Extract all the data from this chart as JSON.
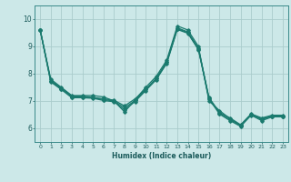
{
  "title": "",
  "xlabel": "Humidex (Indice chaleur)",
  "bg_color": "#cce8e8",
  "line_color": "#1a7a6e",
  "grid_color": "#aacccc",
  "xlim": [
    -0.5,
    23.5
  ],
  "ylim": [
    5.5,
    10.5
  ],
  "yticks": [
    6,
    7,
    8,
    9,
    10
  ],
  "xticks": [
    0,
    1,
    2,
    3,
    4,
    5,
    6,
    7,
    8,
    9,
    10,
    11,
    12,
    13,
    14,
    15,
    16,
    17,
    18,
    19,
    20,
    21,
    22,
    23
  ],
  "series": [
    {
      "x": [
        0,
        1,
        2,
        3,
        4,
        5,
        6,
        7,
        8,
        9,
        10,
        11,
        12,
        13,
        14,
        15,
        16,
        17,
        18,
        19,
        20,
        21,
        22,
        23
      ],
      "y": [
        9.6,
        7.8,
        7.5,
        7.2,
        7.2,
        7.2,
        7.15,
        7.0,
        6.6,
        7.05,
        7.5,
        7.9,
        8.5,
        9.75,
        9.6,
        9.0,
        7.0,
        6.65,
        6.35,
        6.1,
        6.5,
        6.35,
        6.45,
        6.45
      ]
    },
    {
      "x": [
        0,
        1,
        2,
        3,
        4,
        5,
        6,
        7,
        8,
        9,
        10,
        11,
        12,
        13,
        14,
        15,
        16,
        17,
        18,
        19,
        20,
        21,
        22,
        23
      ],
      "y": [
        9.6,
        7.75,
        7.48,
        7.18,
        7.18,
        7.13,
        7.08,
        7.03,
        6.82,
        7.08,
        7.43,
        7.83,
        8.43,
        9.68,
        9.53,
        8.93,
        7.13,
        6.58,
        6.38,
        6.13,
        6.53,
        6.38,
        6.48,
        6.48
      ]
    },
    {
      "x": [
        0,
        1,
        2,
        3,
        4,
        5,
        6,
        7,
        8,
        9,
        10,
        11,
        12,
        13,
        14,
        15,
        16,
        17,
        18,
        19,
        20,
        21,
        22,
        23
      ],
      "y": [
        9.6,
        7.72,
        7.45,
        7.15,
        7.15,
        7.12,
        7.05,
        7.0,
        6.75,
        7.02,
        7.42,
        7.82,
        8.42,
        9.65,
        9.5,
        8.9,
        7.1,
        6.55,
        6.32,
        6.1,
        6.5,
        6.32,
        6.45,
        6.45
      ]
    },
    {
      "x": [
        0,
        1,
        2,
        3,
        4,
        5,
        6,
        7,
        8,
        9,
        10,
        11,
        12,
        13,
        14,
        15,
        16,
        17,
        18,
        19,
        20,
        21,
        22,
        23
      ],
      "y": [
        9.6,
        7.7,
        7.42,
        7.12,
        7.12,
        7.1,
        7.02,
        6.97,
        6.68,
        6.98,
        7.38,
        7.78,
        8.38,
        9.62,
        9.48,
        8.88,
        7.08,
        6.52,
        6.28,
        6.07,
        6.48,
        6.28,
        6.42,
        6.42
      ]
    }
  ]
}
